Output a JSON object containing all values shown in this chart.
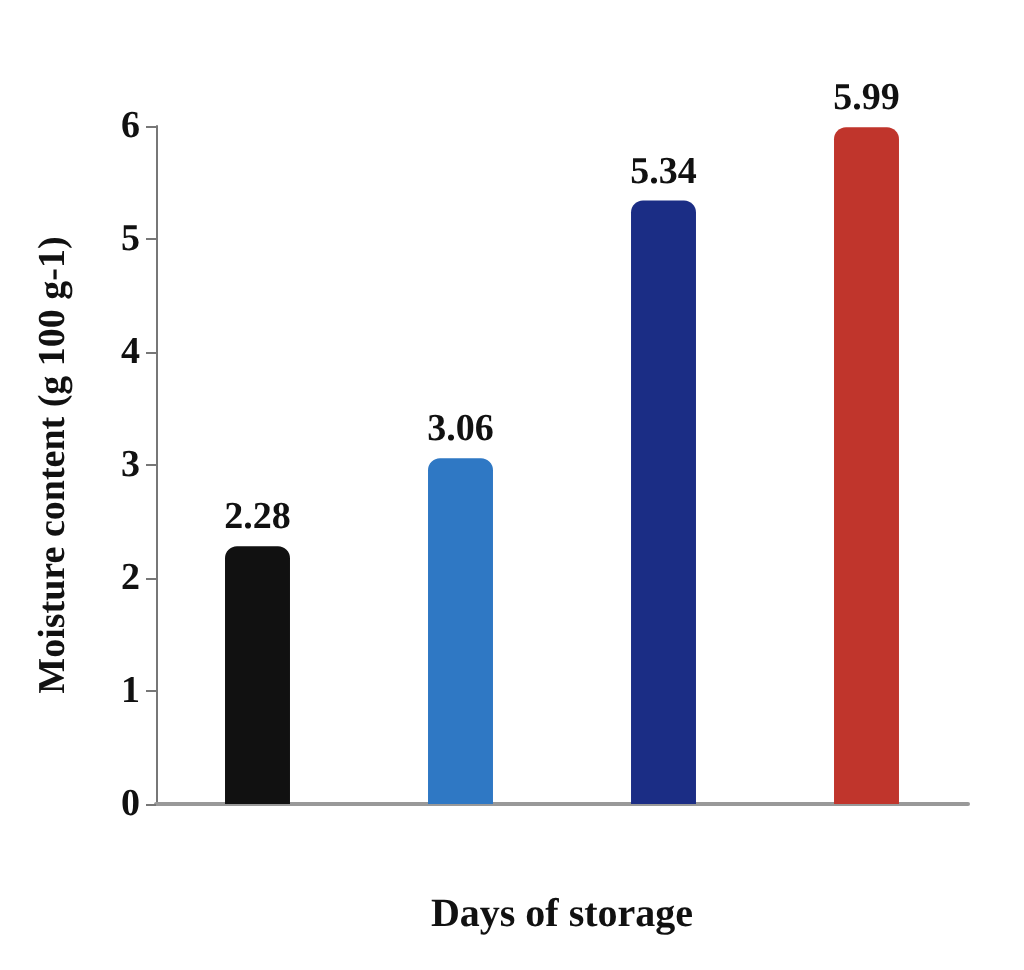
{
  "chart_data": {
    "type": "bar",
    "xlabel": "Days of storage",
    "ylabel": "Moisture content (g 100 g-1)",
    "categories": [
      null,
      null,
      null,
      null
    ],
    "values": [
      2.28,
      3.06,
      5.34,
      5.99
    ],
    "colors": [
      "#111111",
      "#2f78c4",
      "#1b2d85",
      "#c0352c"
    ],
    "ylim": [
      0,
      6
    ],
    "yticks": [
      0,
      1,
      2,
      3,
      4,
      5,
      6
    ],
    "data_labels": true
  }
}
